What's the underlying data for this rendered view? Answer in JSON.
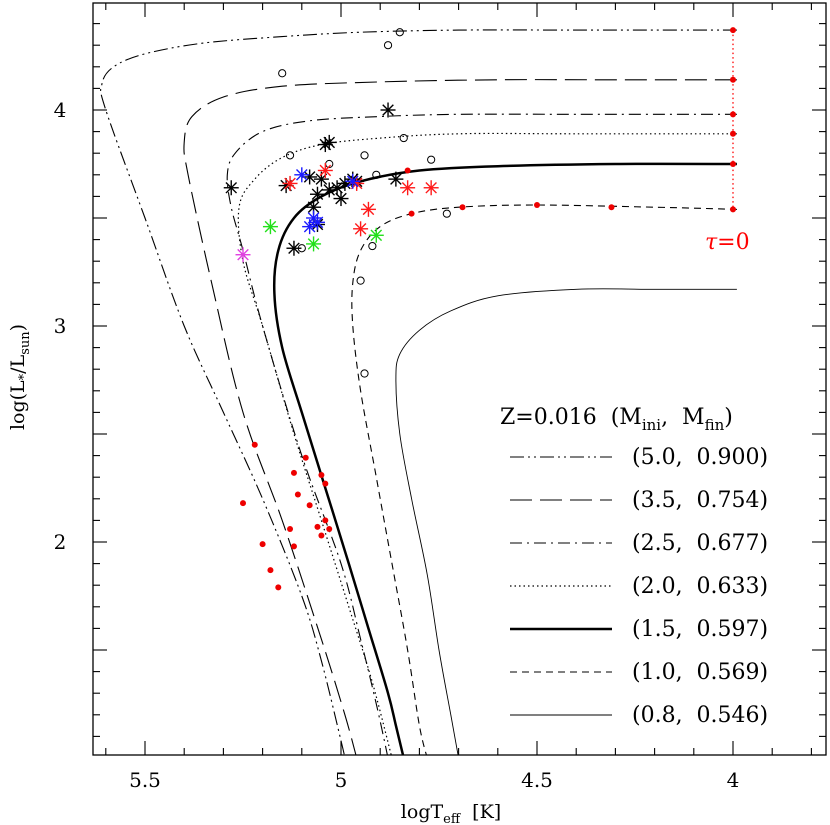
{
  "chart_data": {
    "type": "line",
    "title": "",
    "xlabel_main": "logT",
    "xlabel_sub": "eff",
    "xlabel_unit": "  [K]",
    "ylabel_pre": "log(L",
    "ylabel_star": "*",
    "ylabel_mid": "/L",
    "ylabel_sub": "sun",
    "ylabel_post": ")",
    "xlim": [
      5.66,
      3.76
    ],
    "ylim": [
      0.95,
      4.5
    ],
    "x_ticks": [
      {
        "value": 5.5,
        "label": "5.5"
      },
      {
        "value": 5.0,
        "label": "5"
      },
      {
        "value": 4.5,
        "label": "4.5"
      },
      {
        "value": 4.0,
        "label": "4"
      }
    ],
    "y_ticks": [
      {
        "value": 4,
        "label": "4"
      },
      {
        "value": 3,
        "label": "3"
      },
      {
        "value": 2,
        "label": "2"
      }
    ],
    "legend": {
      "title": {
        "z": "Z=0.016",
        "open": "  (M",
        "ini": "ini",
        "sep": ",  M",
        "fin": "fin",
        "close": ")"
      },
      "placement": "bottom-right"
    },
    "tau_label": {
      "sym": "τ",
      "text": "=0",
      "color": "#ff0000"
    },
    "series": [
      {
        "name": "(5.0,  0.900)",
        "style": "dash-dot-dot",
        "width": 1.1,
        "points": [
          [
            3.99,
            4.37
          ],
          [
            4.2,
            4.37
          ],
          [
            4.4,
            4.37
          ],
          [
            4.7,
            4.37
          ],
          [
            4.95,
            4.36
          ],
          [
            5.15,
            4.34
          ],
          [
            5.35,
            4.31
          ],
          [
            5.5,
            4.26
          ],
          [
            5.58,
            4.2
          ],
          [
            5.61,
            4.12
          ],
          [
            5.6,
            4.0
          ],
          [
            5.5,
            3.5
          ],
          [
            5.4,
            3.0
          ],
          [
            5.3,
            2.6
          ],
          [
            5.2,
            2.2
          ],
          [
            5.1,
            1.75
          ],
          [
            5.05,
            1.45
          ],
          [
            5.0,
            1.08
          ],
          [
            4.99,
            1.0
          ]
        ]
      },
      {
        "name": "(3.5,  0.754)",
        "style": "long-dash",
        "width": 1.1,
        "points": [
          [
            3.99,
            4.14
          ],
          [
            4.3,
            4.14
          ],
          [
            4.6,
            4.14
          ],
          [
            4.9,
            4.13
          ],
          [
            5.15,
            4.11
          ],
          [
            5.3,
            4.06
          ],
          [
            5.38,
            3.97
          ],
          [
            5.4,
            3.85
          ],
          [
            5.39,
            3.7
          ],
          [
            5.33,
            3.2
          ],
          [
            5.25,
            2.6
          ],
          [
            5.15,
            2.1
          ],
          [
            5.05,
            1.55
          ],
          [
            4.99,
            1.2
          ],
          [
            4.96,
            1.0
          ]
        ]
      },
      {
        "name": "(2.5,  0.677)",
        "style": "dash-dot",
        "width": 1.1,
        "points": [
          [
            3.99,
            3.98
          ],
          [
            4.4,
            3.98
          ],
          [
            4.7,
            3.98
          ],
          [
            4.9,
            3.97
          ],
          [
            5.08,
            3.95
          ],
          [
            5.2,
            3.9
          ],
          [
            5.27,
            3.8
          ],
          [
            5.29,
            3.7
          ],
          [
            5.28,
            3.55
          ],
          [
            5.25,
            3.35
          ],
          [
            5.2,
            3.0
          ],
          [
            5.1,
            2.4
          ],
          [
            5.0,
            1.9
          ],
          [
            4.95,
            1.55
          ],
          [
            4.91,
            1.25
          ],
          [
            4.88,
            1.0
          ]
        ]
      },
      {
        "name": "(2.0,  0.633)",
        "style": "dotted",
        "width": 1.2,
        "points": [
          [
            3.99,
            3.89
          ],
          [
            4.4,
            3.89
          ],
          [
            4.7,
            3.89
          ],
          [
            4.9,
            3.87
          ],
          [
            5.05,
            3.84
          ],
          [
            5.15,
            3.78
          ],
          [
            5.22,
            3.68
          ],
          [
            5.26,
            3.55
          ],
          [
            5.25,
            3.3
          ],
          [
            5.2,
            3.0
          ],
          [
            5.12,
            2.5
          ],
          [
            5.05,
            2.1
          ],
          [
            4.98,
            1.7
          ],
          [
            4.92,
            1.35
          ],
          [
            4.87,
            1.0
          ]
        ]
      },
      {
        "name": "(1.5,  0.597)",
        "style": "solid-thick",
        "width": 2.5,
        "points": [
          [
            3.99,
            3.75
          ],
          [
            4.3,
            3.75
          ],
          [
            4.6,
            3.74
          ],
          [
            4.8,
            3.72
          ],
          [
            4.95,
            3.67
          ],
          [
            5.05,
            3.6
          ],
          [
            5.12,
            3.5
          ],
          [
            5.16,
            3.35
          ],
          [
            5.17,
            3.15
          ],
          [
            5.15,
            2.9
          ],
          [
            5.1,
            2.6
          ],
          [
            5.04,
            2.25
          ],
          [
            4.98,
            1.9
          ],
          [
            4.93,
            1.6
          ],
          [
            4.88,
            1.3
          ],
          [
            4.86,
            1.15
          ],
          [
            4.84,
            1.0
          ]
        ]
      },
      {
        "name": "(1.0,  0.569)",
        "style": "short-dash",
        "width": 1.1,
        "points": [
          [
            3.99,
            3.54
          ],
          [
            4.2,
            3.55
          ],
          [
            4.5,
            3.56
          ],
          [
            4.7,
            3.55
          ],
          [
            4.82,
            3.52
          ],
          [
            4.9,
            3.46
          ],
          [
            4.95,
            3.35
          ],
          [
            4.97,
            3.2
          ],
          [
            4.97,
            3.0
          ],
          [
            4.95,
            2.7
          ],
          [
            4.91,
            2.3
          ],
          [
            4.87,
            1.9
          ],
          [
            4.83,
            1.5
          ],
          [
            4.8,
            1.15
          ],
          [
            4.78,
            1.0
          ]
        ]
      },
      {
        "name": "(0.8,  0.546)",
        "style": "solid-thin",
        "width": 0.9,
        "points": [
          [
            3.99,
            3.17
          ],
          [
            4.2,
            3.17
          ],
          [
            4.4,
            3.17
          ],
          [
            4.6,
            3.14
          ],
          [
            4.72,
            3.07
          ],
          [
            4.8,
            2.98
          ],
          [
            4.85,
            2.87
          ],
          [
            4.86,
            2.75
          ],
          [
            4.85,
            2.5
          ],
          [
            4.82,
            2.2
          ],
          [
            4.78,
            1.85
          ],
          [
            4.75,
            1.5
          ],
          [
            4.72,
            1.2
          ],
          [
            4.7,
            1.0
          ]
        ]
      }
    ],
    "tau_zero_points": [
      [
        4.0,
        4.37
      ],
      [
        4.0,
        4.14
      ],
      [
        4.0,
        3.98
      ],
      [
        4.0,
        3.89
      ],
      [
        4.0,
        3.75
      ],
      [
        4.0,
        3.54
      ]
    ],
    "red_dots": [
      [
        4.83,
        3.72
      ],
      [
        4.82,
        3.52
      ],
      [
        4.69,
        3.55
      ],
      [
        4.5,
        3.56
      ],
      [
        4.31,
        3.55
      ],
      [
        5.22,
        2.45
      ],
      [
        5.25,
        2.18
      ],
      [
        5.2,
        1.99
      ],
      [
        5.18,
        1.87
      ],
      [
        5.16,
        1.79
      ],
      [
        5.12,
        2.32
      ],
      [
        5.11,
        2.22
      ],
      [
        5.13,
        2.06
      ],
      [
        5.12,
        1.98
      ],
      [
        5.09,
        2.39
      ],
      [
        5.08,
        2.17
      ],
      [
        5.06,
        2.07
      ],
      [
        5.05,
        2.03
      ],
      [
        5.05,
        2.31
      ],
      [
        5.04,
        2.27
      ],
      [
        5.04,
        2.1
      ],
      [
        5.03,
        2.06
      ]
    ],
    "black_stars": [
      [
        5.28,
        3.64
      ],
      [
        5.14,
        3.65
      ],
      [
        5.12,
        3.36
      ],
      [
        5.08,
        3.69
      ],
      [
        5.06,
        3.61
      ],
      [
        5.05,
        3.68
      ],
      [
        5.04,
        3.84
      ],
      [
        5.03,
        3.85
      ],
      [
        5.03,
        3.63
      ],
      [
        5.01,
        3.64
      ],
      [
        5.0,
        3.59
      ],
      [
        4.99,
        3.66
      ],
      [
        4.97,
        3.68
      ],
      [
        4.96,
        3.67
      ],
      [
        4.86,
        3.68
      ],
      [
        4.88,
        4.0
      ],
      [
        5.07,
        3.55
      ],
      [
        5.06,
        3.47
      ]
    ],
    "red_stars": [
      [
        5.13,
        3.66
      ],
      [
        5.04,
        3.72
      ],
      [
        4.96,
        3.66
      ],
      [
        4.93,
        3.54
      ],
      [
        4.95,
        3.45
      ],
      [
        4.83,
        3.64
      ],
      [
        4.77,
        3.64
      ]
    ],
    "blue_stars": [
      [
        5.1,
        3.7
      ],
      [
        5.07,
        3.5
      ],
      [
        5.06,
        3.48
      ],
      [
        4.97,
        3.67
      ],
      [
        5.08,
        3.46
      ]
    ],
    "green_stars": [
      [
        5.18,
        3.46
      ],
      [
        5.07,
        3.38
      ],
      [
        4.91,
        3.42
      ]
    ],
    "magenta_stars": [
      [
        5.25,
        3.33
      ]
    ],
    "open_circles": [
      [
        4.85,
        4.36
      ],
      [
        4.88,
        4.3
      ],
      [
        5.15,
        4.17
      ],
      [
        4.84,
        3.87
      ],
      [
        5.13,
        3.79
      ],
      [
        4.94,
        3.79
      ],
      [
        5.03,
        3.75
      ],
      [
        4.91,
        3.7
      ],
      [
        4.77,
        3.77
      ],
      [
        4.73,
        3.52
      ],
      [
        5.1,
        3.36
      ],
      [
        4.92,
        3.37
      ],
      [
        4.95,
        3.21
      ],
      [
        4.94,
        2.78
      ]
    ]
  }
}
